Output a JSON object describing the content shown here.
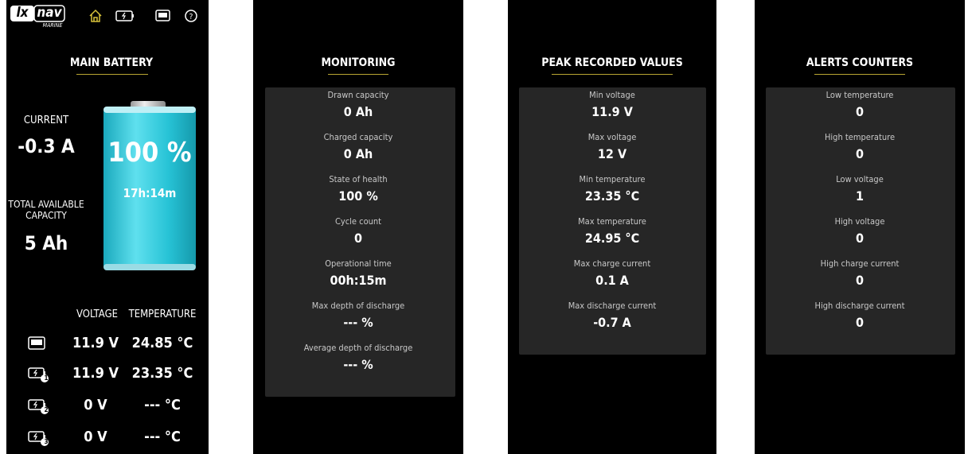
{
  "header": {
    "brand_left": "lx",
    "brand_right": "nav",
    "sub": "MARINE"
  },
  "main_battery": {
    "title": "MAIN BATTERY",
    "current_label": "CURRENT",
    "current_value": "-0.3 A",
    "capacity_label": "TOTAL AVAILABLE CAPACITY",
    "capacity_value": "5 Ah",
    "charge_percent": "100 %",
    "time_remaining": "17h:14m",
    "table": {
      "headers": [
        "VOLTAGE",
        "TEMPERATURE"
      ],
      "rows": [
        {
          "voltage": "11.9 V",
          "temperature": "24.85 °C"
        },
        {
          "badge": "1",
          "voltage": "11.9 V",
          "temperature": "23.35 °C"
        },
        {
          "badge": "2",
          "voltage": "0 V",
          "temperature": "--- °C"
        },
        {
          "badge": "3",
          "voltage": "0 V",
          "temperature": "--- °C"
        }
      ]
    }
  },
  "panels": [
    {
      "title": "MONITORING",
      "items": [
        {
          "label": "Drawn capacity",
          "value": "0 Ah"
        },
        {
          "label": "Charged capacity",
          "value": "0 Ah"
        },
        {
          "label": "State of health",
          "value": "100 %"
        },
        {
          "label": "Cycle count",
          "value": "0"
        },
        {
          "label": "Operational time",
          "value": "00h:15m"
        },
        {
          "label": "Max depth of discharge",
          "value": "--- %"
        },
        {
          "label": "Average depth of discharge",
          "value": "--- %"
        }
      ]
    },
    {
      "title": "PEAK RECORDED VALUES",
      "items": [
        {
          "label": "Min voltage",
          "value": "11.9 V"
        },
        {
          "label": "Max voltage",
          "value": "12 V"
        },
        {
          "label": "Min temperature",
          "value": "23.35 °C"
        },
        {
          "label": "Max temperature",
          "value": "24.95 °C"
        },
        {
          "label": "Max charge current",
          "value": "0.1 A"
        },
        {
          "label": "Max discharge current",
          "value": "-0.7 A"
        }
      ]
    },
    {
      "title": "ALERTS COUNTERS",
      "items": [
        {
          "label": "Low temperature",
          "value": "0"
        },
        {
          "label": "High temperature",
          "value": "0"
        },
        {
          "label": "Low voltage",
          "value": "1"
        },
        {
          "label": "High voltage",
          "value": "0"
        },
        {
          "label": "High charge current",
          "value": "0"
        },
        {
          "label": "High discharge current",
          "value": "0"
        }
      ]
    }
  ]
}
